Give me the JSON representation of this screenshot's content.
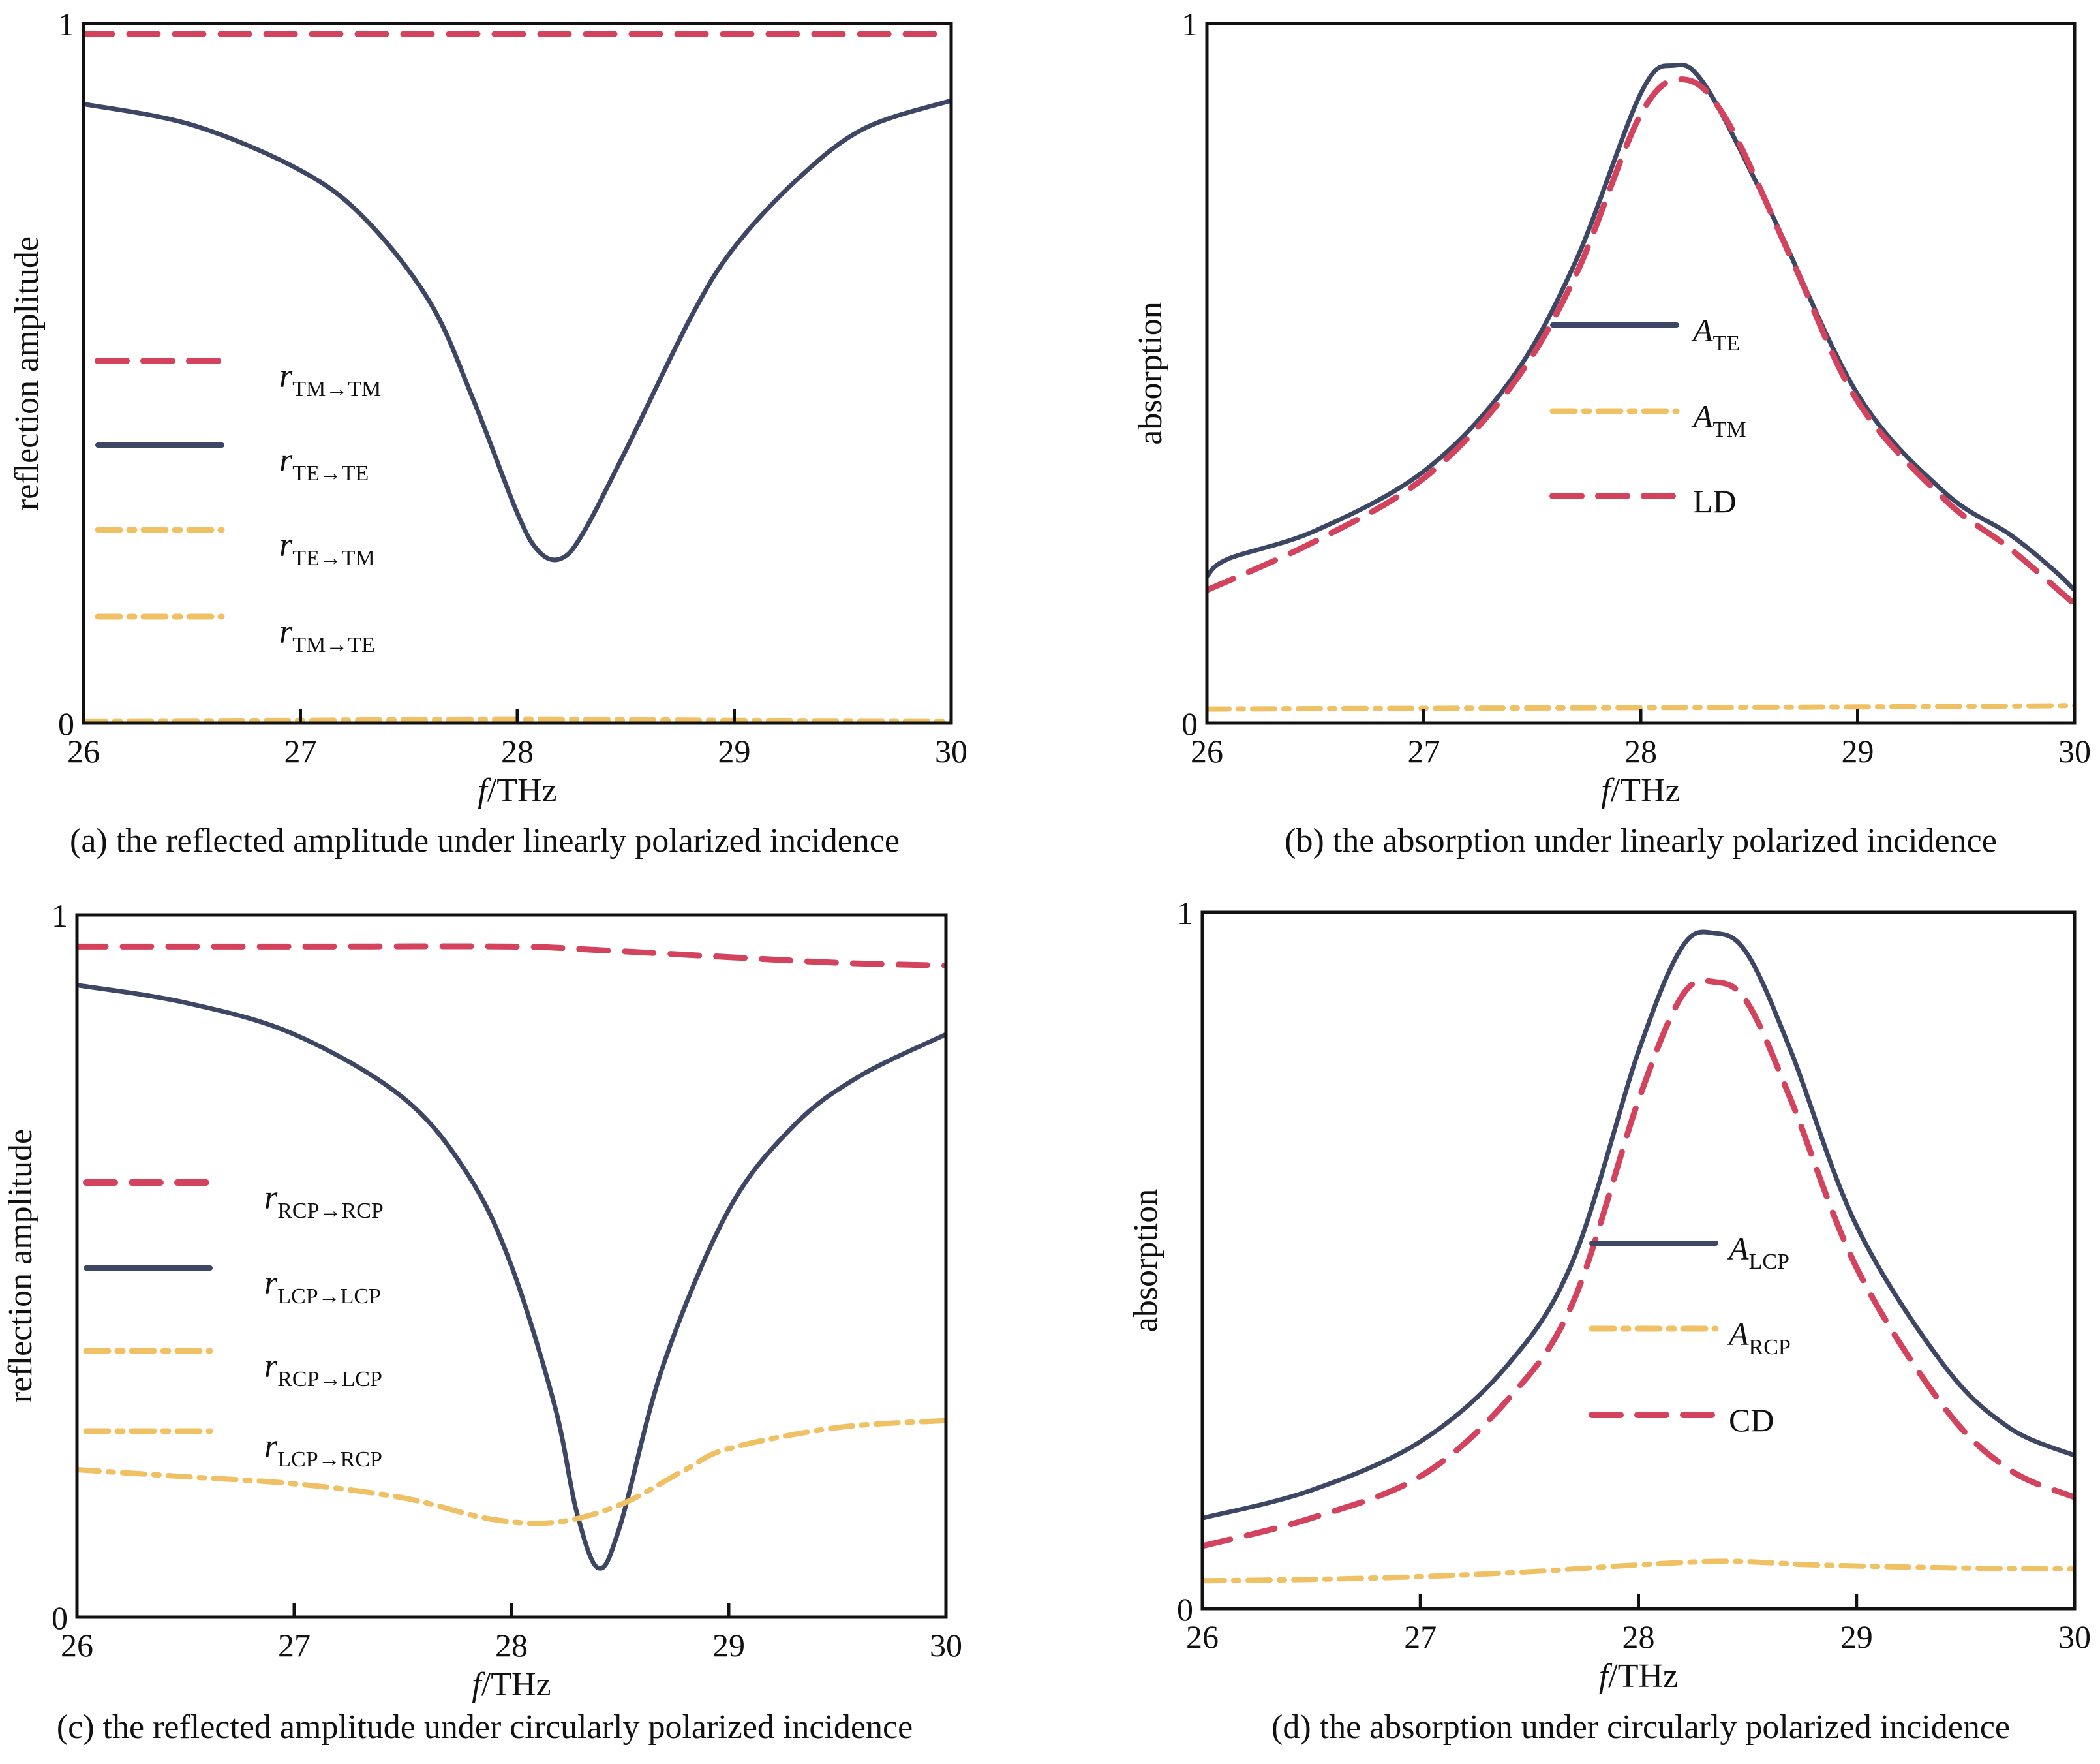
{
  "colors": {
    "navy": "#3d4663",
    "crimson": "#d4435d",
    "amber": "#f0c064",
    "axis": "#111111"
  },
  "chart_data": [
    {
      "id": "a",
      "type": "line",
      "caption": "(a)  the reflected amplitude under linearly  polarized incidence",
      "xlabel_italic": "f",
      "xlabel_rest": "/THz",
      "ylabel": "reflection amplitude",
      "xlim": [
        26,
        30
      ],
      "ylim": [
        0,
        1
      ],
      "xticks": [
        "26",
        "27",
        "28",
        "29",
        "30"
      ],
      "yticks": [
        "0",
        "1"
      ],
      "grid": false,
      "legend_position": "left",
      "series": [
        {
          "name_main": "r",
          "name_sub": "TM→TM",
          "style": "dash",
          "color": "crimson",
          "x": [
            26,
            27,
            28,
            29,
            30
          ],
          "y": [
            0.985,
            0.985,
            0.985,
            0.985,
            0.985
          ]
        },
        {
          "name_main": "r",
          "name_sub": "TE→TE",
          "style": "solid",
          "color": "navy",
          "x": [
            26,
            26.5,
            27,
            27.3,
            27.6,
            27.8,
            28,
            28.1,
            28.2,
            28.3,
            28.5,
            28.8,
            29,
            29.3,
            29.6,
            30
          ],
          "y": [
            0.885,
            0.855,
            0.79,
            0.72,
            0.6,
            0.46,
            0.3,
            0.245,
            0.235,
            0.27,
            0.39,
            0.58,
            0.68,
            0.78,
            0.85,
            0.89
          ]
        },
        {
          "name_main": "r",
          "name_sub": "TE→TM",
          "style": "dashdot",
          "color": "amber",
          "x": [
            26,
            27,
            28,
            29,
            30
          ],
          "y": [
            0.003,
            0.004,
            0.006,
            0.004,
            0.003
          ]
        },
        {
          "name_main": "r",
          "name_sub": "TM→TE",
          "style": "dashdot",
          "color": "amber",
          "x": [
            26,
            27,
            28,
            29,
            30
          ],
          "y": [
            0.002,
            0.003,
            0.004,
            0.003,
            0.002
          ]
        }
      ]
    },
    {
      "id": "b",
      "type": "line",
      "caption": "(b)  the absorption under linearly polarized incidence",
      "xlabel_italic": "f",
      "xlabel_rest": "/THz",
      "ylabel": "absorption",
      "xlim": [
        26,
        30
      ],
      "ylim": [
        0,
        1
      ],
      "xticks": [
        "26",
        "27",
        "28",
        "29",
        "30"
      ],
      "yticks": [
        "0",
        "1"
      ],
      "grid": false,
      "legend_position": "center",
      "series": [
        {
          "name_main": "A",
          "name_sub": "TE",
          "style": "solid",
          "color": "navy",
          "x": [
            26,
            26.1,
            26.5,
            27,
            27.4,
            27.7,
            28,
            28.15,
            28.3,
            28.6,
            29,
            29.4,
            29.7,
            29.9,
            30
          ],
          "y": [
            0.21,
            0.235,
            0.275,
            0.36,
            0.49,
            0.66,
            0.9,
            0.94,
            0.91,
            0.73,
            0.47,
            0.33,
            0.27,
            0.22,
            0.19
          ]
        },
        {
          "name_main": "A",
          "name_sub": "TM",
          "style": "dashdot",
          "color": "amber",
          "x": [
            26,
            27,
            28,
            29,
            30
          ],
          "y": [
            0.02,
            0.021,
            0.022,
            0.023,
            0.025
          ]
        },
        {
          "name_main": "LD",
          "name_sub": "",
          "style": "dash",
          "color": "crimson",
          "x": [
            26,
            26.5,
            27,
            27.4,
            27.7,
            28,
            28.2,
            28.4,
            28.7,
            29,
            29.4,
            29.7,
            30
          ],
          "y": [
            0.19,
            0.26,
            0.35,
            0.48,
            0.64,
            0.87,
            0.92,
            0.86,
            0.66,
            0.46,
            0.32,
            0.25,
            0.17
          ]
        }
      ]
    },
    {
      "id": "c",
      "type": "line",
      "caption": "(c)  the reflected amplitude under circularly polarized incidence",
      "xlabel_italic": "f",
      "xlabel_rest": "/THz",
      "ylabel": "reflection amplitude",
      "xlim": [
        26,
        30
      ],
      "ylim": [
        0,
        1
      ],
      "xticks": [
        "26",
        "27",
        "28",
        "29",
        "30"
      ],
      "yticks": [
        "0",
        "1"
      ],
      "grid": false,
      "legend_position": "left",
      "series": [
        {
          "name_main": "r",
          "name_sub": "RCP→RCP",
          "style": "dash",
          "color": "crimson",
          "x": [
            26,
            27,
            28,
            28.4,
            29,
            29.5,
            30
          ],
          "y": [
            0.955,
            0.955,
            0.955,
            0.95,
            0.94,
            0.932,
            0.928
          ]
        },
        {
          "name_main": "r",
          "name_sub": "LCP→LCP",
          "style": "solid",
          "color": "navy",
          "x": [
            26,
            26.5,
            27,
            27.5,
            27.8,
            28,
            28.2,
            28.3,
            28.4,
            28.5,
            28.7,
            29,
            29.3,
            29.6,
            30
          ],
          "y": [
            0.9,
            0.875,
            0.83,
            0.74,
            0.63,
            0.5,
            0.3,
            0.15,
            0.07,
            0.13,
            0.36,
            0.58,
            0.7,
            0.77,
            0.83
          ]
        },
        {
          "name_main": "r",
          "name_sub": "RCP→LCP",
          "style": "dashdot",
          "color": "amber",
          "x": [
            26,
            26.5,
            27,
            27.5,
            27.9,
            28.2,
            28.5,
            28.8,
            29,
            29.5,
            30
          ],
          "y": [
            0.21,
            0.2,
            0.19,
            0.17,
            0.14,
            0.135,
            0.16,
            0.21,
            0.24,
            0.27,
            0.28
          ]
        },
        {
          "name_main": "r",
          "name_sub": "LCP→RCP",
          "style": "dashdot",
          "color": "amber",
          "x": [
            26,
            26.5,
            27,
            27.5,
            27.9,
            28.2,
            28.5,
            28.8,
            29,
            29.5,
            30
          ],
          "y": [
            0.21,
            0.2,
            0.19,
            0.17,
            0.14,
            0.135,
            0.16,
            0.21,
            0.24,
            0.27,
            0.28
          ]
        }
      ]
    },
    {
      "id": "d",
      "type": "line",
      "caption": "(d)  the absorption under circularly polarized  incidence",
      "xlabel_italic": "f",
      "xlabel_rest": "/THz",
      "ylabel": "absorption",
      "xlim": [
        26,
        30
      ],
      "ylim": [
        0,
        1
      ],
      "xticks": [
        "26",
        "27",
        "28",
        "29",
        "30"
      ],
      "yticks": [
        "0",
        "1"
      ],
      "grid": false,
      "legend_position": "center",
      "series": [
        {
          "name_main": "A",
          "name_sub": "LCP",
          "style": "solid",
          "color": "navy",
          "x": [
            26,
            26.5,
            27,
            27.4,
            27.7,
            28,
            28.2,
            28.35,
            28.5,
            28.7,
            29,
            29.4,
            29.7,
            30
          ],
          "y": [
            0.13,
            0.17,
            0.24,
            0.35,
            0.5,
            0.8,
            0.95,
            0.97,
            0.94,
            0.8,
            0.55,
            0.35,
            0.26,
            0.22
          ]
        },
        {
          "name_main": "A",
          "name_sub": "RCP",
          "style": "dashdot",
          "color": "amber",
          "x": [
            26,
            26.5,
            27,
            27.5,
            28,
            28.4,
            28.8,
            29.2,
            29.6,
            30
          ],
          "y": [
            0.04,
            0.042,
            0.046,
            0.053,
            0.063,
            0.068,
            0.063,
            0.06,
            0.058,
            0.057
          ]
        },
        {
          "name_main": "CD",
          "name_sub": "",
          "style": "dash",
          "color": "crimson",
          "x": [
            26,
            26.5,
            27,
            27.4,
            27.7,
            28,
            28.2,
            28.35,
            28.5,
            28.7,
            29,
            29.4,
            29.7,
            30
          ],
          "y": [
            0.09,
            0.13,
            0.19,
            0.3,
            0.44,
            0.73,
            0.88,
            0.9,
            0.87,
            0.73,
            0.49,
            0.29,
            0.2,
            0.16
          ]
        }
      ]
    }
  ]
}
